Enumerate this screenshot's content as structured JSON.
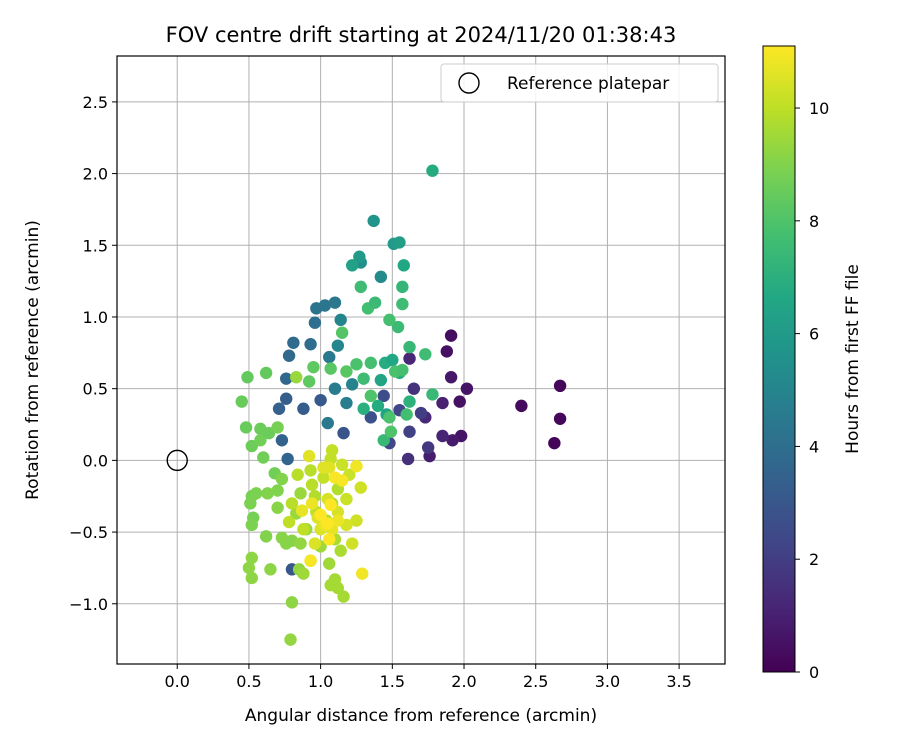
{
  "chart_data": {
    "type": "scatter",
    "title": "FOV centre drift starting at 2024/11/20 01:38:43",
    "xlabel": "Angular distance from reference (arcmin)",
    "ylabel": "Rotation from reference (arcmin)",
    "xlim": [
      -0.42,
      3.82
    ],
    "ylim": [
      -1.42,
      2.82
    ],
    "xticks": [
      0.0,
      0.5,
      1.0,
      1.5,
      2.0,
      2.5,
      3.0,
      3.5
    ],
    "yticks": [
      -1.0,
      -0.5,
      0.0,
      0.5,
      1.0,
      1.5,
      2.0,
      2.5
    ],
    "xtick_labels": [
      "0.0",
      "0.5",
      "1.0",
      "1.5",
      "2.0",
      "2.5",
      "3.0",
      "3.5"
    ],
    "ytick_labels": [
      "−1.0",
      "−0.5",
      "0.0",
      "0.5",
      "1.0",
      "1.5",
      "2.0",
      "2.5"
    ],
    "grid": true,
    "legend": {
      "placement": "top-right",
      "entries": [
        "Reference platepar"
      ]
    },
    "reference_point": {
      "x": 0.0,
      "y": 0.0,
      "label": "Reference platepar"
    },
    "colorbar": {
      "label": "Hours from first FF file",
      "colormap": "viridis",
      "range": [
        0,
        11.1
      ],
      "ticks": [
        0,
        2,
        4,
        6,
        8,
        10
      ],
      "tick_labels": [
        "0",
        "2",
        "4",
        "6",
        "8",
        "10"
      ]
    },
    "points": [
      {
        "x": 2.63,
        "y": 0.12,
        "t": 0.1
      },
      {
        "x": 2.67,
        "y": 0.29,
        "t": 0.2
      },
      {
        "x": 2.67,
        "y": 0.52,
        "t": 0.2
      },
      {
        "x": 2.4,
        "y": 0.38,
        "t": 0.3
      },
      {
        "x": 1.91,
        "y": 0.87,
        "t": 0.4
      },
      {
        "x": 1.88,
        "y": 0.76,
        "t": 0.5
      },
      {
        "x": 1.97,
        "y": 0.41,
        "t": 0.5
      },
      {
        "x": 2.02,
        "y": 0.5,
        "t": 0.6
      },
      {
        "x": 1.98,
        "y": 0.17,
        "t": 0.6
      },
      {
        "x": 1.91,
        "y": 0.58,
        "t": 0.7
      },
      {
        "x": 1.92,
        "y": 0.14,
        "t": 0.8
      },
      {
        "x": 1.76,
        "y": 0.03,
        "t": 0.9
      },
      {
        "x": 1.85,
        "y": 0.4,
        "t": 1.0
      },
      {
        "x": 1.85,
        "y": 0.17,
        "t": 1.1
      },
      {
        "x": 1.62,
        "y": 0.71,
        "t": 1.2
      },
      {
        "x": 1.73,
        "y": 0.3,
        "t": 1.3
      },
      {
        "x": 1.61,
        "y": 0.01,
        "t": 1.5
      },
      {
        "x": 1.65,
        "y": 0.5,
        "t": 1.6
      },
      {
        "x": 1.75,
        "y": 0.09,
        "t": 1.8
      },
      {
        "x": 1.7,
        "y": 0.33,
        "t": 2.0
      },
      {
        "x": 1.62,
        "y": 0.2,
        "t": 2.1
      },
      {
        "x": 1.55,
        "y": 0.35,
        "t": 2.3
      },
      {
        "x": 1.48,
        "y": 0.12,
        "t": 2.4
      },
      {
        "x": 1.44,
        "y": 0.45,
        "t": 2.6
      },
      {
        "x": 1.35,
        "y": 0.3,
        "t": 2.7
      },
      {
        "x": 1.16,
        "y": 0.19,
        "t": 2.9
      },
      {
        "x": 0.8,
        "y": -0.76,
        "t": 3.0
      },
      {
        "x": 1.0,
        "y": 0.42,
        "t": 3.1
      },
      {
        "x": 0.88,
        "y": 0.36,
        "t": 3.2
      },
      {
        "x": 0.76,
        "y": 0.43,
        "t": 3.3
      },
      {
        "x": 0.71,
        "y": 0.36,
        "t": 3.4
      },
      {
        "x": 0.73,
        "y": 0.14,
        "t": 3.5
      },
      {
        "x": 0.77,
        "y": 0.01,
        "t": 3.6
      },
      {
        "x": 0.76,
        "y": 0.57,
        "t": 3.7
      },
      {
        "x": 0.78,
        "y": 0.73,
        "t": 3.8
      },
      {
        "x": 0.81,
        "y": 0.82,
        "t": 3.8
      },
      {
        "x": 0.93,
        "y": 0.81,
        "t": 3.9
      },
      {
        "x": 0.96,
        "y": 0.96,
        "t": 4.0
      },
      {
        "x": 0.97,
        "y": 1.06,
        "t": 4.2
      },
      {
        "x": 1.03,
        "y": 1.08,
        "t": 4.3
      },
      {
        "x": 1.1,
        "y": 1.1,
        "t": 4.4
      },
      {
        "x": 1.06,
        "y": 0.72,
        "t": 4.5
      },
      {
        "x": 1.05,
        "y": 0.26,
        "t": 4.5
      },
      {
        "x": 1.1,
        "y": 0.5,
        "t": 4.6
      },
      {
        "x": 1.18,
        "y": 0.4,
        "t": 4.7
      },
      {
        "x": 1.22,
        "y": 0.53,
        "t": 4.9
      },
      {
        "x": 1.14,
        "y": 0.98,
        "t": 5.0
      },
      {
        "x": 1.12,
        "y": 0.8,
        "t": 5.1
      },
      {
        "x": 1.42,
        "y": 1.28,
        "t": 5.3
      },
      {
        "x": 1.28,
        "y": 1.38,
        "t": 5.5
      },
      {
        "x": 1.37,
        "y": 1.67,
        "t": 5.7
      },
      {
        "x": 1.51,
        "y": 1.51,
        "t": 6.0
      },
      {
        "x": 1.27,
        "y": 1.42,
        "t": 6.0
      },
      {
        "x": 1.55,
        "y": 1.52,
        "t": 6.2
      },
      {
        "x": 1.22,
        "y": 1.36,
        "t": 6.3
      },
      {
        "x": 1.58,
        "y": 1.36,
        "t": 6.6
      },
      {
        "x": 1.78,
        "y": 2.02,
        "t": 6.8
      },
      {
        "x": 1.42,
        "y": 0.56,
        "t": 6.5
      },
      {
        "x": 1.45,
        "y": 0.68,
        "t": 6.9
      },
      {
        "x": 1.5,
        "y": 0.7,
        "t": 6.6
      },
      {
        "x": 1.4,
        "y": 0.38,
        "t": 6.8
      },
      {
        "x": 1.3,
        "y": 0.36,
        "t": 7.0
      },
      {
        "x": 1.46,
        "y": 0.32,
        "t": 6.4
      },
      {
        "x": 1.55,
        "y": 0.61,
        "t": 6.9
      },
      {
        "x": 1.62,
        "y": 0.41,
        "t": 7.1
      },
      {
        "x": 1.57,
        "y": 1.21,
        "t": 7.3
      },
      {
        "x": 1.54,
        "y": 0.93,
        "t": 7.5
      },
      {
        "x": 1.62,
        "y": 0.79,
        "t": 7.4
      },
      {
        "x": 1.57,
        "y": 1.09,
        "t": 7.6
      },
      {
        "x": 1.28,
        "y": 1.21,
        "t": 7.6
      },
      {
        "x": 1.33,
        "y": 1.06,
        "t": 7.7
      },
      {
        "x": 1.38,
        "y": 1.1,
        "t": 7.5
      },
      {
        "x": 1.3,
        "y": 0.57,
        "t": 7.6
      },
      {
        "x": 1.25,
        "y": 0.67,
        "t": 7.9
      },
      {
        "x": 1.35,
        "y": 0.68,
        "t": 7.8
      },
      {
        "x": 1.44,
        "y": 0.14,
        "t": 7.4
      },
      {
        "x": 1.48,
        "y": 0.98,
        "t": 7.8
      },
      {
        "x": 1.52,
        "y": 0.62,
        "t": 7.9
      },
      {
        "x": 1.6,
        "y": 0.32,
        "t": 7.7
      },
      {
        "x": 1.78,
        "y": 0.46,
        "t": 7.4
      },
      {
        "x": 1.73,
        "y": 0.74,
        "t": 7.6
      },
      {
        "x": 1.57,
        "y": 0.63,
        "t": 7.8
      },
      {
        "x": 1.48,
        "y": 0.3,
        "t": 7.9
      },
      {
        "x": 1.49,
        "y": 0.2,
        "t": 8.0
      },
      {
        "x": 1.35,
        "y": 0.45,
        "t": 8.0
      },
      {
        "x": 1.15,
        "y": 0.89,
        "t": 8.1
      },
      {
        "x": 1.18,
        "y": 0.62,
        "t": 8.2
      },
      {
        "x": 1.07,
        "y": 0.64,
        "t": 8.2
      },
      {
        "x": 0.92,
        "y": 0.55,
        "t": 8.3
      },
      {
        "x": 0.95,
        "y": 0.65,
        "t": 8.3
      },
      {
        "x": 0.62,
        "y": 0.61,
        "t": 8.4
      },
      {
        "x": 0.49,
        "y": 0.58,
        "t": 8.4
      },
      {
        "x": 0.45,
        "y": 0.41,
        "t": 8.5
      },
      {
        "x": 0.48,
        "y": 0.23,
        "t": 8.5
      },
      {
        "x": 0.52,
        "y": 0.1,
        "t": 8.6
      },
      {
        "x": 0.58,
        "y": 0.22,
        "t": 8.6
      },
      {
        "x": 0.6,
        "y": 0.02,
        "t": 8.7
      },
      {
        "x": 0.58,
        "y": 0.14,
        "t": 8.7
      },
      {
        "x": 0.64,
        "y": 0.19,
        "t": 8.6
      },
      {
        "x": 0.68,
        "y": -0.09,
        "t": 8.7
      },
      {
        "x": 0.7,
        "y": 0.23,
        "t": 8.8
      },
      {
        "x": 0.52,
        "y": -0.25,
        "t": 8.8
      },
      {
        "x": 0.53,
        "y": -0.4,
        "t": 8.8
      },
      {
        "x": 0.52,
        "y": -0.45,
        "t": 8.9
      },
      {
        "x": 0.51,
        "y": -0.3,
        "t": 8.9
      },
      {
        "x": 0.55,
        "y": -0.23,
        "t": 8.9
      },
      {
        "x": 0.63,
        "y": -0.23,
        "t": 9.0
      },
      {
        "x": 0.7,
        "y": -0.21,
        "t": 9.0
      },
      {
        "x": 0.73,
        "y": -0.13,
        "t": 9.0
      },
      {
        "x": 0.62,
        "y": -0.53,
        "t": 9.0
      },
      {
        "x": 0.7,
        "y": -0.33,
        "t": 9.1
      },
      {
        "x": 0.73,
        "y": -0.54,
        "t": 9.1
      },
      {
        "x": 0.76,
        "y": -0.58,
        "t": 9.1
      },
      {
        "x": 0.8,
        "y": -0.56,
        "t": 9.1
      },
      {
        "x": 0.52,
        "y": -0.68,
        "t": 9.2
      },
      {
        "x": 0.5,
        "y": -0.75,
        "t": 9.2
      },
      {
        "x": 0.52,
        "y": -0.82,
        "t": 9.2
      },
      {
        "x": 0.65,
        "y": -0.76,
        "t": 9.2
      },
      {
        "x": 0.8,
        "y": -0.99,
        "t": 9.2
      },
      {
        "x": 0.79,
        "y": -1.25,
        "t": 9.3
      },
      {
        "x": 0.85,
        "y": -0.76,
        "t": 9.3
      },
      {
        "x": 0.86,
        "y": -0.58,
        "t": 9.3
      },
      {
        "x": 0.83,
        "y": -0.37,
        "t": 9.4
      },
      {
        "x": 0.86,
        "y": -0.23,
        "t": 9.4
      },
      {
        "x": 0.83,
        "y": 0.58,
        "t": 9.4
      },
      {
        "x": 0.9,
        "y": -0.48,
        "t": 9.4
      },
      {
        "x": 0.88,
        "y": -0.79,
        "t": 9.5
      },
      {
        "x": 0.93,
        "y": -0.7,
        "t": 9.5
      },
      {
        "x": 1.0,
        "y": -0.6,
        "t": 9.5
      },
      {
        "x": 1.06,
        "y": -0.72,
        "t": 9.5
      },
      {
        "x": 1.07,
        "y": -0.87,
        "t": 9.6
      },
      {
        "x": 1.1,
        "y": -0.83,
        "t": 9.6
      },
      {
        "x": 1.12,
        "y": -0.89,
        "t": 9.6
      },
      {
        "x": 1.16,
        "y": -0.95,
        "t": 9.6
      },
      {
        "x": 1.1,
        "y": -0.55,
        "t": 9.7
      },
      {
        "x": 1.14,
        "y": -0.63,
        "t": 9.7
      },
      {
        "x": 1.04,
        "y": -0.42,
        "t": 9.7
      },
      {
        "x": 1.08,
        "y": -0.3,
        "t": 9.8
      },
      {
        "x": 1.12,
        "y": -0.2,
        "t": 9.8
      },
      {
        "x": 0.96,
        "y": -0.25,
        "t": 9.8
      },
      {
        "x": 0.94,
        "y": -0.17,
        "t": 9.9
      },
      {
        "x": 0.93,
        "y": -0.07,
        "t": 9.9
      },
      {
        "x": 0.84,
        "y": -0.1,
        "t": 9.9
      },
      {
        "x": 0.8,
        "y": -0.3,
        "t": 9.9
      },
      {
        "x": 0.78,
        "y": -0.43,
        "t": 10.0
      },
      {
        "x": 0.88,
        "y": -0.48,
        "t": 10.0
      },
      {
        "x": 0.97,
        "y": -0.36,
        "t": 10.0
      },
      {
        "x": 1.02,
        "y": -0.12,
        "t": 10.1
      },
      {
        "x": 1.07,
        "y": 0.01,
        "t": 10.1
      },
      {
        "x": 1.08,
        "y": 0.07,
        "t": 10.1
      },
      {
        "x": 1.15,
        "y": -0.03,
        "t": 10.2
      },
      {
        "x": 1.2,
        "y": -0.1,
        "t": 10.2
      },
      {
        "x": 1.18,
        "y": -0.27,
        "t": 10.2
      },
      {
        "x": 1.25,
        "y": -0.42,
        "t": 10.3
      },
      {
        "x": 1.22,
        "y": -0.58,
        "t": 10.3
      },
      {
        "x": 1.28,
        "y": -0.19,
        "t": 10.3
      },
      {
        "x": 1.18,
        "y": -0.45,
        "t": 10.4
      },
      {
        "x": 1.12,
        "y": -0.36,
        "t": 10.4
      },
      {
        "x": 1.05,
        "y": -0.27,
        "t": 10.4
      },
      {
        "x": 1.0,
        "y": -0.48,
        "t": 10.5
      },
      {
        "x": 0.98,
        "y": -0.4,
        "t": 10.5
      },
      {
        "x": 0.96,
        "y": -0.58,
        "t": 10.5
      },
      {
        "x": 1.02,
        "y": -0.05,
        "t": 10.6
      },
      {
        "x": 1.06,
        "y": -0.05,
        "t": 10.6
      },
      {
        "x": 0.92,
        "y": 0.03,
        "t": 10.6
      },
      {
        "x": 0.87,
        "y": -0.35,
        "t": 10.7
      },
      {
        "x": 1.08,
        "y": -0.48,
        "t": 10.7
      },
      {
        "x": 1.12,
        "y": -0.42,
        "t": 10.8
      },
      {
        "x": 1.03,
        "y": -0.45,
        "t": 10.8
      },
      {
        "x": 0.94,
        "y": -0.3,
        "t": 10.8
      },
      {
        "x": 1.25,
        "y": -0.04,
        "t": 10.9
      },
      {
        "x": 1.29,
        "y": -0.79,
        "t": 10.9
      },
      {
        "x": 1.15,
        "y": -0.14,
        "t": 11.0
      },
      {
        "x": 0.93,
        "y": -0.7,
        "t": 11.0
      },
      {
        "x": 1.1,
        "y": -0.12,
        "t": 11.0
      },
      {
        "x": 1.07,
        "y": -0.31,
        "t": 11.1
      },
      {
        "x": 1.05,
        "y": -0.44,
        "t": 11.1
      },
      {
        "x": 1.0,
        "y": -0.38,
        "t": 11.1
      },
      {
        "x": 1.06,
        "y": -0.55,
        "t": 11.1
      }
    ]
  }
}
